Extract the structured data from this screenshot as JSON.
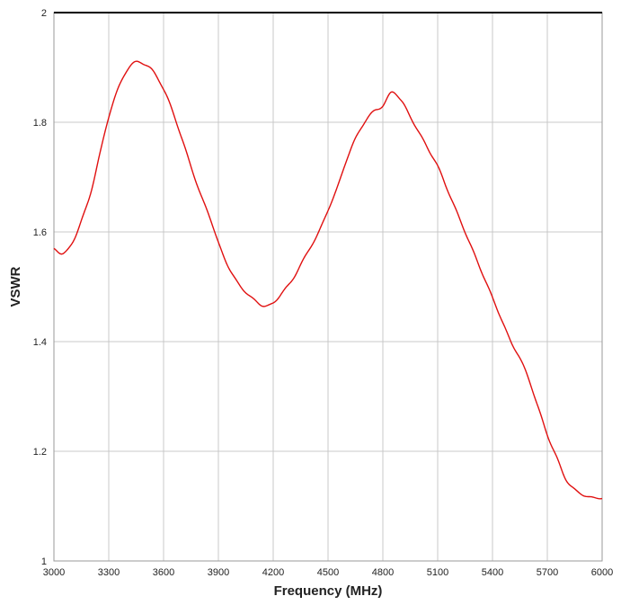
{
  "chart_data": {
    "type": "line",
    "title": "",
    "xlabel": "Frequency (MHz)",
    "ylabel": "VSWR",
    "xlim": [
      3000,
      6000
    ],
    "ylim": [
      1,
      2
    ],
    "x_ticks": [
      "3000",
      "3300",
      "3600",
      "3900",
      "4200",
      "4500",
      "4800",
      "5100",
      "5400",
      "5700",
      "6000"
    ],
    "y_ticks": [
      "1",
      "1.2",
      "1.4",
      "1.6",
      "1.8",
      "2"
    ],
    "grid": true,
    "legend": "none",
    "series": [
      {
        "color": "#e01010",
        "x": [
          3000,
          3050,
          3100,
          3150,
          3200,
          3250,
          3300,
          3350,
          3400,
          3450,
          3500,
          3550,
          3600,
          3650,
          3700,
          3750,
          3800,
          3850,
          3900,
          3950,
          4000,
          4050,
          4100,
          4150,
          4200,
          4250,
          4300,
          4350,
          4400,
          4450,
          4500,
          4550,
          4600,
          4650,
          4700,
          4750,
          4800,
          4850,
          4900,
          4950,
          5000,
          5050,
          5100,
          5150,
          5200,
          5250,
          5300,
          5350,
          5400,
          5450,
          5500,
          5550,
          5600,
          5650,
          5700,
          5750,
          5800,
          5850,
          5900,
          5950,
          6000
        ],
        "values": [
          1.57,
          1.56,
          1.58,
          1.62,
          1.67,
          1.74,
          1.81,
          1.86,
          1.895,
          1.91,
          1.905,
          1.89,
          1.86,
          1.82,
          1.77,
          1.72,
          1.67,
          1.63,
          1.58,
          1.54,
          1.51,
          1.49,
          1.475,
          1.465,
          1.47,
          1.49,
          1.51,
          1.54,
          1.57,
          1.6,
          1.64,
          1.68,
          1.73,
          1.77,
          1.8,
          1.82,
          1.83,
          1.855,
          1.84,
          1.81,
          1.78,
          1.75,
          1.72,
          1.68,
          1.64,
          1.6,
          1.56,
          1.52,
          1.48,
          1.44,
          1.4,
          1.37,
          1.33,
          1.28,
          1.23,
          1.19,
          1.15,
          1.13,
          1.12,
          1.115,
          1.115
        ]
      }
    ]
  }
}
